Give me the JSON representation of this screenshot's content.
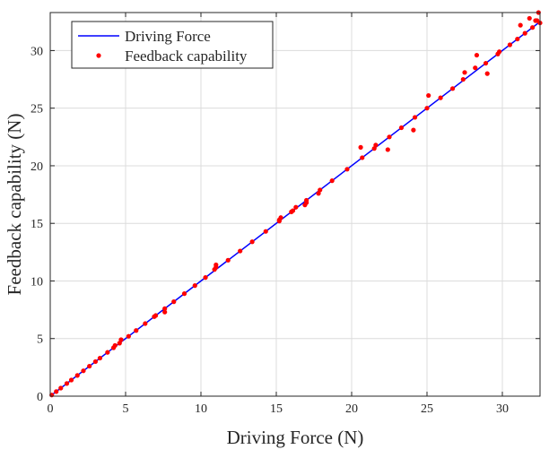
{
  "chart_data": {
    "type": "line",
    "title": "",
    "xlabel": "Driving Force (N)",
    "ylabel": "Feedback capability (N)",
    "xlim": [
      0,
      32.5
    ],
    "ylim": [
      0,
      33.3
    ],
    "xticks": [
      "0",
      "5",
      "10",
      "15",
      "20",
      "25",
      "30"
    ],
    "yticks": [
      "0",
      "5",
      "10",
      "15",
      "20",
      "25",
      "30"
    ],
    "grid": true,
    "legend_position": "top-left",
    "series": [
      {
        "name": "Driving Force",
        "kind": "line",
        "color": "#0000ff",
        "x": [
          0,
          32.5
        ],
        "y": [
          0,
          32.5
        ]
      },
      {
        "name": "Feedback capability",
        "kind": "scatter",
        "color": "#ff0000",
        "x": [
          0.1,
          0.4,
          0.7,
          1.1,
          1.4,
          1.8,
          2.2,
          2.6,
          3.0,
          3.3,
          3.8,
          4.2,
          4.3,
          4.6,
          4.7,
          5.2,
          5.7,
          6.3,
          6.9,
          7.0,
          7.6,
          7.6,
          8.2,
          8.9,
          9.6,
          10.3,
          10.9,
          11.0,
          11.0,
          11.8,
          12.6,
          13.4,
          14.3,
          15.2,
          15.2,
          15.3,
          16.0,
          16.1,
          16.3,
          16.9,
          17.0,
          17.0,
          17.8,
          17.9,
          18.7,
          19.7,
          20.6,
          20.7,
          21.5,
          21.6,
          22.4,
          22.5,
          23.3,
          24.1,
          24.2,
          25.0,
          25.1,
          25.9,
          26.7,
          27.4,
          27.5,
          28.2,
          28.3,
          28.9,
          29.0,
          29.7,
          29.8,
          30.5,
          31.0,
          31.2,
          31.5,
          31.8,
          32.0,
          32.2,
          32.3,
          32.4,
          32.5
        ],
        "y": [
          0.1,
          0.4,
          0.7,
          1.1,
          1.4,
          1.8,
          2.2,
          2.6,
          3.0,
          3.3,
          3.8,
          4.2,
          4.4,
          4.6,
          4.9,
          5.2,
          5.7,
          6.3,
          6.9,
          7.0,
          7.3,
          7.6,
          8.2,
          8.9,
          9.6,
          10.3,
          11.0,
          11.2,
          11.4,
          11.8,
          12.6,
          13.4,
          14.3,
          15.2,
          15.3,
          15.5,
          16.0,
          16.1,
          16.4,
          16.6,
          16.8,
          17.0,
          17.6,
          17.9,
          18.7,
          19.7,
          21.6,
          20.7,
          21.5,
          21.8,
          21.4,
          22.5,
          23.3,
          23.1,
          24.2,
          25.0,
          26.1,
          25.9,
          26.7,
          27.5,
          28.1,
          28.5,
          29.6,
          28.9,
          28.0,
          29.7,
          29.9,
          30.5,
          31.0,
          32.2,
          31.5,
          32.8,
          32.0,
          32.6,
          32.6,
          33.3,
          32.4
        ]
      }
    ]
  }
}
